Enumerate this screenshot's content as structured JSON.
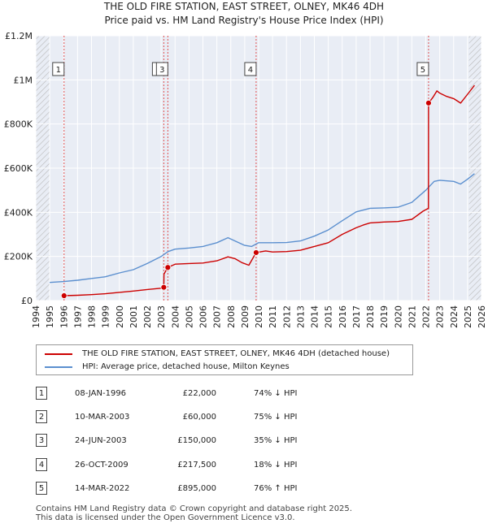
{
  "title": "THE OLD FIRE STATION, EAST STREET, OLNEY, MK46 4DH",
  "subtitle": "Price paid vs. HM Land Registry's House Price Index (HPI)",
  "chart_data": {
    "type": "line",
    "title": "THE OLD FIRE STATION, EAST STREET, OLNEY, MK46 4DH",
    "subtitle": "Price paid vs. HM Land Registry's House Price Index (HPI)",
    "xlim": [
      1994,
      2026
    ],
    "ylim": [
      0,
      1200000
    ],
    "x_ticks": [
      "1994",
      "1995",
      "1996",
      "1997",
      "1998",
      "1999",
      "2000",
      "2001",
      "2002",
      "2003",
      "2004",
      "2005",
      "2006",
      "2007",
      "2008",
      "2009",
      "2010",
      "2011",
      "2012",
      "2013",
      "2014",
      "2015",
      "2016",
      "2017",
      "2018",
      "2019",
      "2020",
      "2021",
      "2022",
      "2023",
      "2024",
      "2025",
      "2026"
    ],
    "y_ticks": [
      {
        "value": 0,
        "label": "£0"
      },
      {
        "value": 200000,
        "label": "£200K"
      },
      {
        "value": 400000,
        "label": "£400K"
      },
      {
        "value": 600000,
        "label": "£600K"
      },
      {
        "value": 800000,
        "label": "£800K"
      },
      {
        "value": 1000000,
        "label": "£1M"
      },
      {
        "value": 1200000,
        "label": "£1.2M"
      }
    ],
    "grid": true,
    "hatched_ranges": [
      [
        1994,
        1995
      ],
      [
        2025.1,
        2026
      ]
    ],
    "series": [
      {
        "name": "THE OLD FIRE STATION, EAST STREET, OLNEY, MK46 4DH (detached house)",
        "color": "#cc0000",
        "points": [
          [
            1996.03,
            22000
          ],
          [
            1997.0,
            24000
          ],
          [
            1998.0,
            27000
          ],
          [
            1999.0,
            31000
          ],
          [
            2000.0,
            37000
          ],
          [
            2001.0,
            43000
          ],
          [
            2002.0,
            50000
          ],
          [
            2003.0,
            56000
          ],
          [
            2003.19,
            60000
          ],
          [
            2003.2,
            120000
          ],
          [
            2003.48,
            150000
          ],
          [
            2004.0,
            165000
          ],
          [
            2005.0,
            168000
          ],
          [
            2006.0,
            170000
          ],
          [
            2007.0,
            180000
          ],
          [
            2007.8,
            198000
          ],
          [
            2008.3,
            190000
          ],
          [
            2008.8,
            172000
          ],
          [
            2009.3,
            160000
          ],
          [
            2009.82,
            217500
          ],
          [
            2010.5,
            225000
          ],
          [
            2011.0,
            220000
          ],
          [
            2012.0,
            222000
          ],
          [
            2013.0,
            228000
          ],
          [
            2014.0,
            245000
          ],
          [
            2015.0,
            262000
          ],
          [
            2016.0,
            300000
          ],
          [
            2017.0,
            330000
          ],
          [
            2017.5,
            342000
          ],
          [
            2018.0,
            352000
          ],
          [
            2019.0,
            356000
          ],
          [
            2020.0,
            358000
          ],
          [
            2021.0,
            368000
          ],
          [
            2021.8,
            405000
          ],
          [
            2022.19,
            418000
          ],
          [
            2022.2,
            895000
          ],
          [
            2022.5,
            920000
          ],
          [
            2022.8,
            950000
          ],
          [
            2023.0,
            940000
          ],
          [
            2023.5,
            925000
          ],
          [
            2024.0,
            915000
          ],
          [
            2024.5,
            895000
          ],
          [
            2025.0,
            935000
          ],
          [
            2025.5,
            975000
          ]
        ]
      },
      {
        "name": "HPI: Average price, detached house, Milton Keynes",
        "color": "#5b8fcf",
        "points": [
          [
            1995.0,
            82000
          ],
          [
            1996.0,
            86000
          ],
          [
            1997.0,
            92000
          ],
          [
            1998.0,
            100000
          ],
          [
            1999.0,
            108000
          ],
          [
            2000.0,
            125000
          ],
          [
            2001.0,
            140000
          ],
          [
            2002.0,
            168000
          ],
          [
            2003.0,
            200000
          ],
          [
            2003.5,
            222000
          ],
          [
            2004.0,
            233000
          ],
          [
            2005.0,
            238000
          ],
          [
            2006.0,
            245000
          ],
          [
            2007.0,
            262000
          ],
          [
            2007.8,
            285000
          ],
          [
            2008.3,
            270000
          ],
          [
            2009.0,
            250000
          ],
          [
            2009.5,
            245000
          ],
          [
            2010.0,
            262000
          ],
          [
            2011.0,
            262000
          ],
          [
            2012.0,
            263000
          ],
          [
            2013.0,
            270000
          ],
          [
            2014.0,
            292000
          ],
          [
            2015.0,
            320000
          ],
          [
            2016.0,
            362000
          ],
          [
            2017.0,
            402000
          ],
          [
            2018.0,
            418000
          ],
          [
            2019.0,
            420000
          ],
          [
            2020.0,
            423000
          ],
          [
            2021.0,
            445000
          ],
          [
            2022.0,
            500000
          ],
          [
            2022.6,
            540000
          ],
          [
            2023.0,
            545000
          ],
          [
            2024.0,
            540000
          ],
          [
            2024.5,
            528000
          ],
          [
            2025.0,
            550000
          ],
          [
            2025.5,
            575000
          ]
        ]
      }
    ],
    "markers": [
      {
        "label": "1",
        "x": 1996.03,
        "y": 22000
      },
      {
        "label": "2",
        "x": 2003.19,
        "y": 60000
      },
      {
        "label": "3",
        "x": 2003.48,
        "y": 150000
      },
      {
        "label": "4",
        "x": 2009.82,
        "y": 217500
      },
      {
        "label": "5",
        "x": 2022.2,
        "y": 895000
      }
    ]
  },
  "transactions": [
    {
      "num": "1",
      "date": "08-JAN-1996",
      "price": "£22,000",
      "hpi": "74% ↓ HPI"
    },
    {
      "num": "2",
      "date": "10-MAR-2003",
      "price": "£60,000",
      "hpi": "75% ↓ HPI"
    },
    {
      "num": "3",
      "date": "24-JUN-2003",
      "price": "£150,000",
      "hpi": "35% ↓ HPI"
    },
    {
      "num": "4",
      "date": "26-OCT-2009",
      "price": "£217,500",
      "hpi": "18% ↓ HPI"
    },
    {
      "num": "5",
      "date": "14-MAR-2022",
      "price": "£895,000",
      "hpi": "76% ↑ HPI"
    }
  ],
  "footer": {
    "line1": "Contains HM Land Registry data © Crown copyright and database right 2025.",
    "line2": "This data is licensed under the Open Government Licence v3.0."
  }
}
